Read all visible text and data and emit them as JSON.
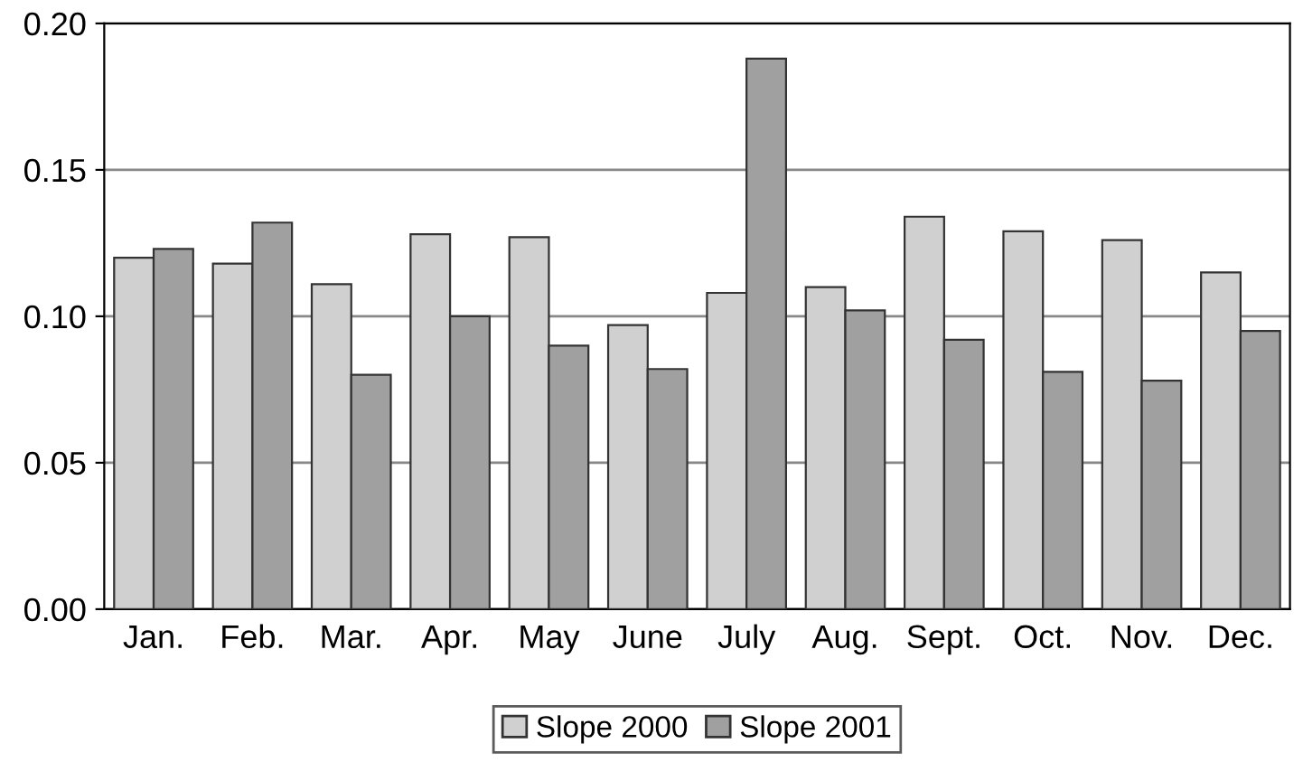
{
  "chart_data": {
    "type": "bar",
    "categories": [
      "Jan.",
      "Feb.",
      "Mar.",
      "Apr.",
      "May",
      "June",
      "July",
      "Aug.",
      "Sept.",
      "Oct.",
      "Nov.",
      "Dec."
    ],
    "series": [
      {
        "name": "Slope 2000",
        "color": "#d0d0d0",
        "values": [
          0.12,
          0.118,
          0.111,
          0.128,
          0.127,
          0.097,
          0.108,
          0.11,
          0.134,
          0.129,
          0.126,
          0.115
        ]
      },
      {
        "name": "Slope 2001",
        "color": "#a0a0a0",
        "values": [
          0.123,
          0.132,
          0.08,
          0.1,
          0.09,
          0.082,
          0.188,
          0.102,
          0.092,
          0.081,
          0.078,
          0.095
        ]
      }
    ],
    "ylim": [
      0,
      0.2
    ],
    "yticks": [
      {
        "value": 0,
        "label": "0.00"
      },
      {
        "value": 0.05,
        "label": "0.05"
      },
      {
        "value": 0.1,
        "label": "0.10"
      },
      {
        "value": 0.15,
        "label": "0.15"
      },
      {
        "value": 0.2,
        "label": "0.20"
      }
    ],
    "grid": "y",
    "legend": "bottom"
  }
}
